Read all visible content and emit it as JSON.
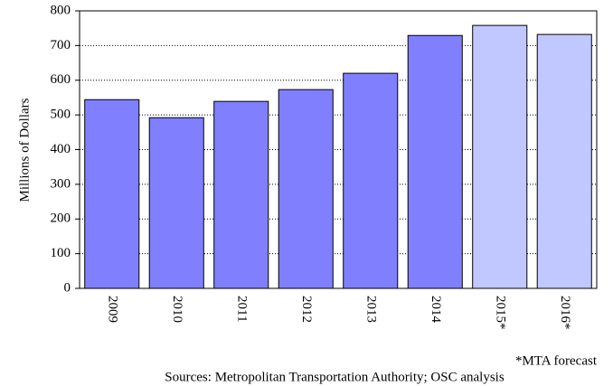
{
  "chart_data": {
    "type": "bar",
    "y_label": "Millions of Dollars",
    "categories": [
      "2009",
      "2010",
      "2011",
      "2012",
      "2013",
      "2014",
      "2015*",
      "2016*"
    ],
    "values": [
      544,
      492,
      539,
      573,
      620,
      729,
      758,
      732
    ],
    "colors": [
      "#8080ff",
      "#8080ff",
      "#8080ff",
      "#8080ff",
      "#8080ff",
      "#8080ff",
      "#c0c8ff",
      "#c0c8ff"
    ],
    "ylim": [
      0,
      800
    ],
    "yticks": [
      0,
      100,
      200,
      300,
      400,
      500,
      600,
      700,
      800
    ],
    "grid": true,
    "footnote": "*MTA forecast",
    "source": "Sources: Metropolitan Transportation Authority; OSC analysis"
  }
}
